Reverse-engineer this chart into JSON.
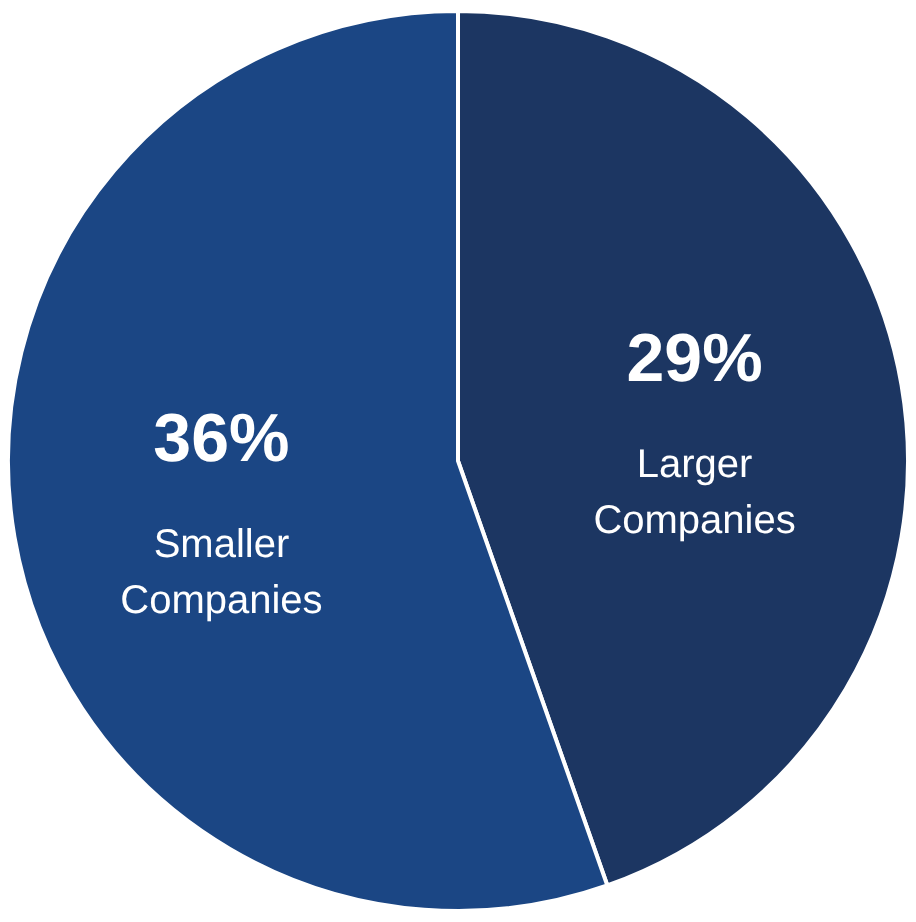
{
  "chart_data": {
    "type": "pie",
    "categories": [
      "Larger Companies",
      "Smaller Companies"
    ],
    "values": [
      29,
      36
    ],
    "colors": [
      "#1c3662",
      "#1b4684"
    ],
    "value_labels": [
      "29%",
      "36%"
    ],
    "legend": false
  }
}
